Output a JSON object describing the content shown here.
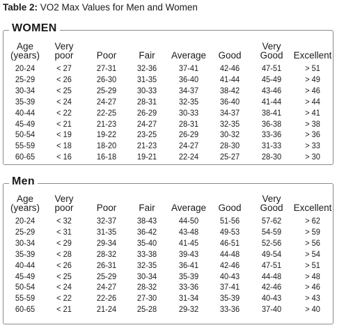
{
  "caption": {
    "label": "Table 2:",
    "text": " VO2 Max Values for Men and Women"
  },
  "women": {
    "title": "WOMEN",
    "headers": [
      "Age\n(years)",
      "Very\npoor",
      "Poor",
      "Fair",
      "Average",
      "Good",
      "Very\nGood",
      "Excellent"
    ],
    "rows": [
      [
        "20-24",
        "< 27",
        "27-31",
        "32-36",
        "37-41",
        "42-46",
        "47-51",
        "> 51"
      ],
      [
        "25-29",
        "< 26",
        "26-30",
        "31-35",
        "36-40",
        "41-44",
        "45-49",
        "> 49"
      ],
      [
        "30-34",
        "< 25",
        "25-29",
        "30-33",
        "34-37",
        "38-42",
        "43-46",
        "> 46"
      ],
      [
        "35-39",
        "< 24",
        "24-27",
        "28-31",
        "32-35",
        "36-40",
        "41-44",
        "> 44"
      ],
      [
        "40-44",
        "< 22",
        "22-25",
        "26-29",
        "30-33",
        "34-37",
        "38-41",
        "> 41"
      ],
      [
        "45-49",
        "< 21",
        "21-23",
        "24-27",
        "28-31",
        "32-35",
        "36-38",
        "> 38"
      ],
      [
        "50-54",
        "< 19",
        "19-22",
        "23-25",
        "26-29",
        "30-32",
        "33-36",
        "> 36"
      ],
      [
        "55-59",
        "< 18",
        "18-20",
        "21-23",
        "24-27",
        "28-30",
        "31-33",
        "> 33"
      ],
      [
        "60-65",
        "< 16",
        "16-18",
        "19-21",
        "22-24",
        "25-27",
        "28-30",
        "> 30"
      ]
    ]
  },
  "men": {
    "title": "Men",
    "headers": [
      "Age\n(years)",
      "Very\npoor",
      "Poor",
      "Fair",
      "Average",
      "Good",
      "Very\nGood",
      "Excellent"
    ],
    "rows": [
      [
        "20-24",
        "< 32",
        "32-37",
        "38-43",
        "44-50",
        "51-56",
        "57-62",
        "> 62"
      ],
      [
        "25-29",
        "< 31",
        "31-35",
        "36-42",
        "43-48",
        "49-53",
        "54-59",
        "> 59"
      ],
      [
        "30-34",
        "< 29",
        "29-34",
        "35-40",
        "41-45",
        "46-51",
        "52-56",
        "> 56"
      ],
      [
        "35-39",
        "< 28",
        "28-32",
        "33-38",
        "39-43",
        "44-48",
        "49-54",
        "> 54"
      ],
      [
        "40-44",
        "< 26",
        "26-31",
        "32-35",
        "36-41",
        "42-46",
        "47-51",
        "> 51"
      ],
      [
        "45-49",
        "< 25",
        "25-29",
        "30-34",
        "35-39",
        "40-43",
        "44-48",
        "> 48"
      ],
      [
        "50-54",
        "< 24",
        "24-27",
        "28-32",
        "33-36",
        "37-41",
        "42-46",
        "> 46"
      ],
      [
        "55-59",
        "< 22",
        "22-26",
        "27-30",
        "31-34",
        "35-39",
        "40-43",
        "> 43"
      ],
      [
        "60-65",
        "< 21",
        "21-24",
        "25-28",
        "29-32",
        "33-36",
        "37-40",
        "> 40"
      ]
    ]
  }
}
